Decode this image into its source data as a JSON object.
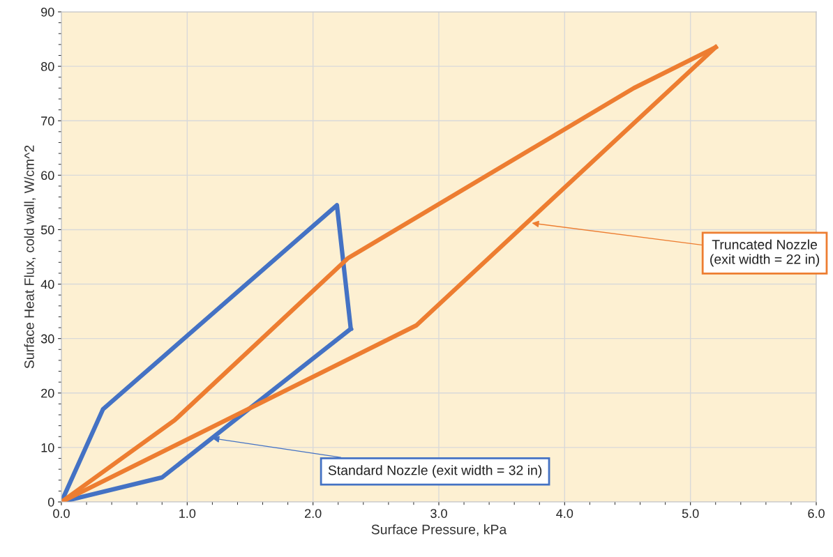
{
  "chart_data": {
    "type": "line",
    "xlabel": "Surface Pressure, kPa",
    "ylabel": "Surface Heat Flux, cold wall, W/cm^2",
    "series": [
      {
        "color": "#4472c4",
        "x": [
          0,
          0.33,
          2.19,
          2.3
        ],
        "values": [
          0,
          17,
          54.5,
          31.8
        ]
      },
      {
        "color": "#4472c4",
        "x": [
          0,
          0.8,
          2.3
        ],
        "values": [
          0,
          4.5,
          31.8
        ]
      },
      {
        "color": "#ed7d31",
        "x": [
          0,
          0.9,
          2.28,
          4.55,
          5.2
        ],
        "values": [
          0,
          15,
          44.8,
          76,
          83.5
        ]
      },
      {
        "color": "#ed7d31",
        "x": [
          0,
          2.82,
          5.2
        ],
        "values": [
          0,
          32.4,
          83.5
        ]
      }
    ],
    "annotations": [
      {
        "text": "Truncated Nozzle\n(exit width = 22 in)",
        "x": 3.74,
        "y": 51.2
      },
      {
        "text": "Standard Nozzle (exit width = 32 in)",
        "x": 1.2,
        "y": 11.7
      }
    ],
    "xlim": [
      0,
      6
    ],
    "ylim": [
      0,
      90
    ],
    "xticks": [
      {
        "value": 0,
        "label": "0.0"
      },
      {
        "value": 1,
        "label": "1.0"
      },
      {
        "value": 2,
        "label": "2.0"
      },
      {
        "value": 3,
        "label": "3.0"
      },
      {
        "value": 4,
        "label": "4.0"
      },
      {
        "value": 5,
        "label": "5.0"
      },
      {
        "value": 6,
        "label": "6.0"
      }
    ],
    "yticks": [
      0,
      10,
      20,
      30,
      40,
      50,
      60,
      70,
      80,
      90
    ],
    "grid": true,
    "marker": "none",
    "line_style": "solid",
    "legend": false
  }
}
